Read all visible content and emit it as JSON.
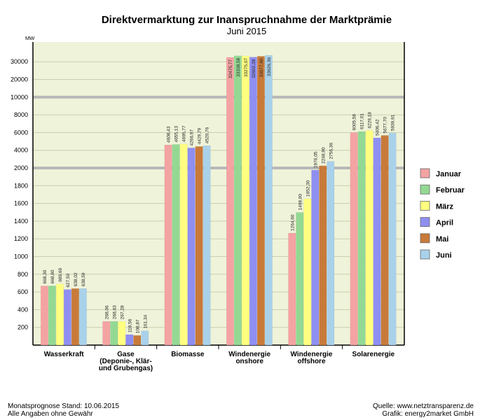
{
  "chart_data": {
    "type": "bar",
    "title": "Direktvermarktung zur Inanspruchnahme der Marktprämie",
    "subtitle": "Juni 2015",
    "ylabel": "MW",
    "xlabel": "",
    "y_scale": "piecewise",
    "y_ticks": [
      "200",
      "400",
      "600",
      "800",
      "1000",
      "1200",
      "1400",
      "1600",
      "1800",
      "2000",
      "4000",
      "6000",
      "8000",
      "10000",
      "20000",
      "30000"
    ],
    "grid": true,
    "legend_position": "right",
    "categories": [
      [
        "Wasserkraft"
      ],
      [
        "Gase",
        "(Deponie-, Klär-",
        "und Grubengas)"
      ],
      [
        "Biomasse"
      ],
      [
        "Windenergie",
        "onshore"
      ],
      [
        "Windenergie",
        "offshore"
      ],
      [
        "Solarenergie"
      ]
    ],
    "series": [
      {
        "name": "Januar",
        "color": "#f4a3a3",
        "values": [
          668.3,
          268.06,
          4608.43,
          32475.77,
          1264.6,
          6005.58
        ],
        "labels": [
          "668,30",
          "268,06",
          "4608,43",
          "32475,77",
          "1264,60",
          "6005,58"
        ]
      },
      {
        "name": "Februar",
        "color": "#93d993",
        "values": [
          668.8,
          268.63,
          4655.13,
          33338.58,
          1498.0,
          6117.01
        ],
        "labels": [
          "668,80",
          "268,63",
          "4655,13",
          "33338,58",
          "1498,00",
          "6117,01"
        ]
      },
      {
        "name": "März",
        "color": "#ffff80",
        "values": [
          689.69,
          267.28,
          4695.77,
          33275.07,
          1652.3,
          6229.18
        ],
        "labels": [
          "689,69",
          "267,28",
          "4695,77",
          "33275,07",
          "1652,30",
          "6229,18"
        ]
      },
      {
        "name": "April",
        "color": "#8f8ff2",
        "values": [
          627.5,
          118.56,
          4266.97,
          32602.39,
          1976.05,
          5406.42
        ],
        "labels": [
          "627,50",
          "118,56",
          "4266,97",
          "32602,39",
          "1976,05",
          "5406,42"
        ]
      },
      {
        "name": "Mai",
        "color": "#c87a3a",
        "values": [
          638.02,
          108.87,
          4429.79,
          33077.6,
          2248.9,
          5677.7
        ],
        "labels": [
          "638,02",
          "108,87",
          "4429,79",
          "33077,60",
          "2248,90",
          "5677,70"
        ]
      },
      {
        "name": "Juni",
        "color": "#a9d1ea",
        "values": [
          638.59,
          161.34,
          4520.76,
          33626.36,
          2756.36,
          5939.91
        ],
        "labels": [
          "638,59",
          "161,34",
          "4520,76",
          "33626,36",
          "2756,36",
          "5939,91"
        ]
      }
    ]
  },
  "footer": {
    "left_line1": "Monatsprognose Stand: 10.06.2015",
    "left_line2": "Alle Angaben ohne Gewähr",
    "right_line1": "Quelle: www.netztransparenz.de",
    "right_line2": "Grafik:  energy2market GmbH"
  }
}
